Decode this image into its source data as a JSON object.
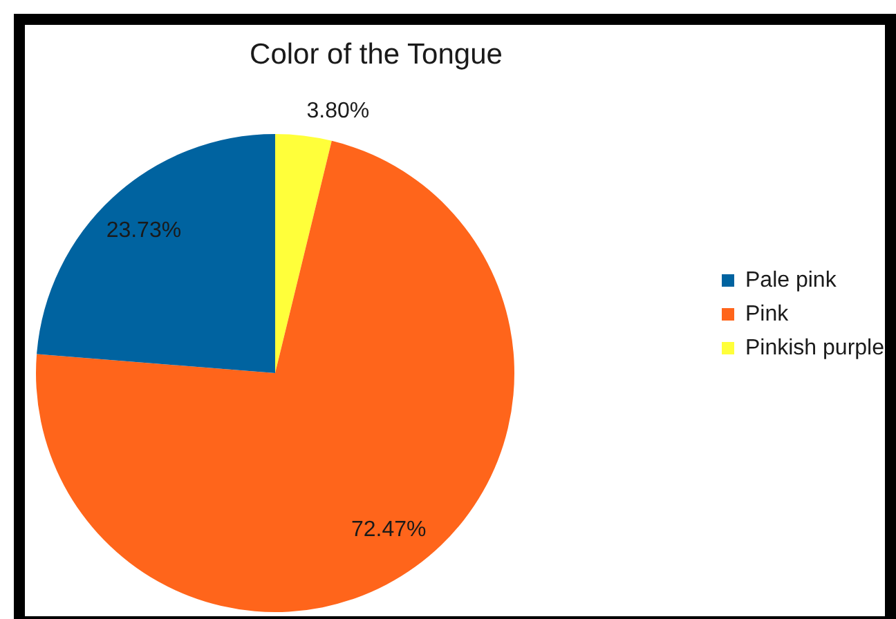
{
  "chart_data": {
    "type": "pie",
    "title": "Color of the Tongue",
    "categories": [
      "Pale pink",
      "Pink",
      "Pinkish purple"
    ],
    "values": [
      23.73,
      72.47,
      3.8
    ],
    "colors": [
      "#0063a0",
      "#ff651b",
      "#ffff3a"
    ],
    "value_labels": [
      "23.73%",
      "72.47%",
      "3.80%"
    ],
    "legend": "right"
  }
}
